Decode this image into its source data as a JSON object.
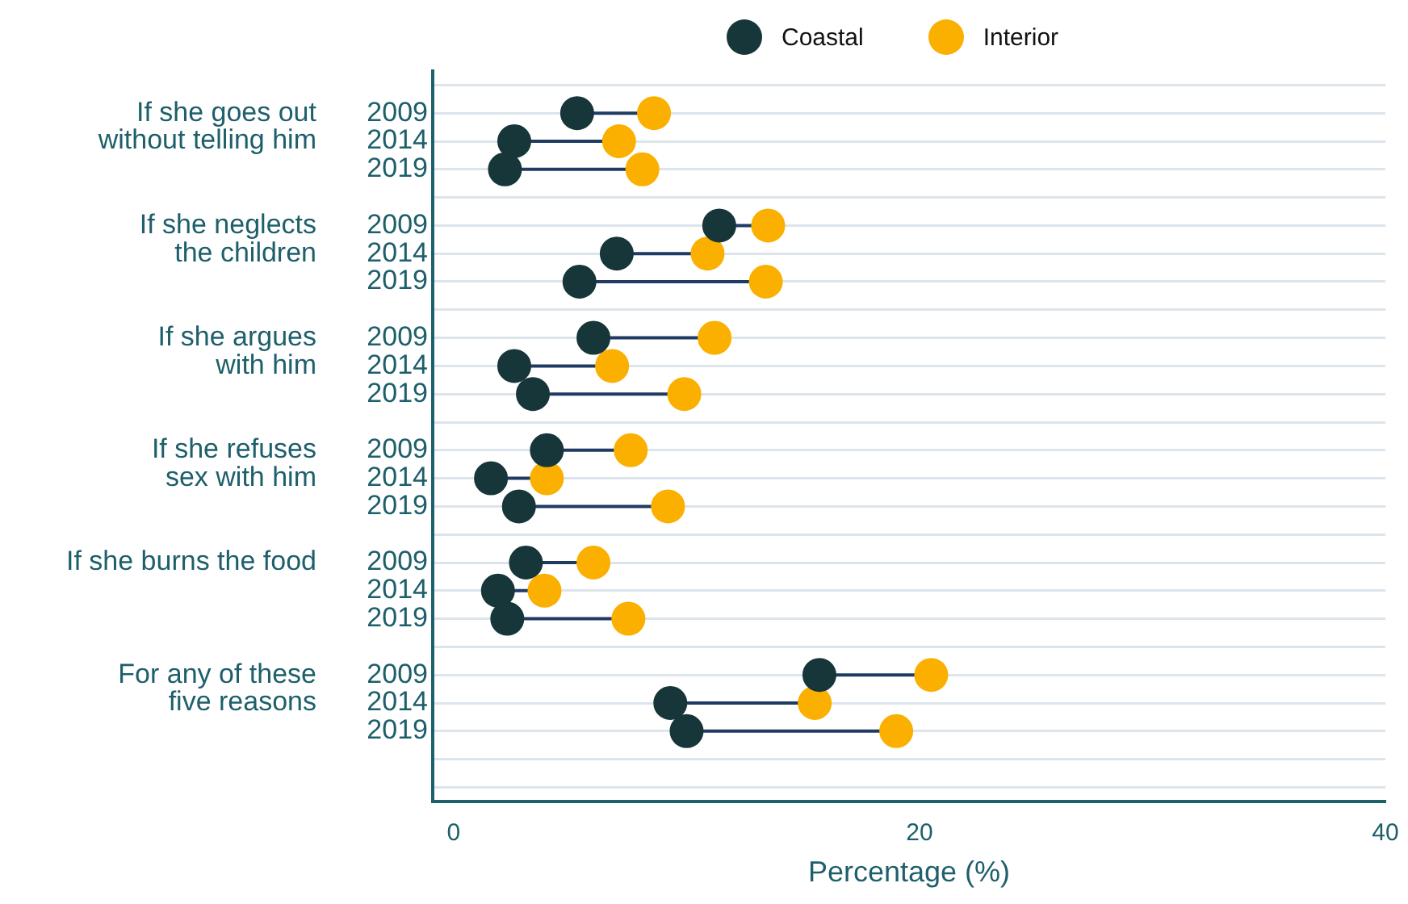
{
  "chart_data": {
    "type": "scatter",
    "orientation": "horizontal",
    "categories": [
      null,
      "2009",
      "2014",
      "2019",
      null,
      "2009",
      "2014",
      "2019",
      null,
      "2009",
      "2014",
      "2019",
      null,
      "2009",
      "2014",
      "2019",
      null,
      "2009",
      "2014",
      "2019",
      null,
      "2009",
      "2014",
      "2019",
      null,
      null
    ],
    "series": [
      {
        "name": "Coastal",
        "color": "#17363a",
        "values": [
          null,
          5.3,
          2.6,
          2.2,
          null,
          11.4,
          7.0,
          5.4,
          null,
          6.0,
          2.6,
          3.4,
          null,
          4.0,
          1.6,
          2.8,
          null,
          3.1,
          1.9,
          2.3,
          null,
          15.7,
          9.3,
          10.0,
          null,
          null
        ]
      },
      {
        "name": "Interior",
        "color": "#fbb000",
        "values": [
          null,
          8.6,
          7.1,
          8.1,
          null,
          13.5,
          10.9,
          13.4,
          null,
          11.2,
          6.8,
          9.9,
          null,
          7.6,
          4.0,
          9.2,
          null,
          6.0,
          3.9,
          7.5,
          null,
          20.5,
          15.5,
          19.0,
          null,
          null
        ]
      }
    ],
    "annotations": [
      "If she goes out\nwithout telling him",
      "If she neglects\nthe children",
      "If she argues\nwith him",
      "If she refuses\nsex with him",
      "If she burns the food",
      "For any of these\nfive reasons"
    ],
    "xlabel": "Percentage (%)",
    "xlim": [
      -0.9,
      40
    ],
    "xticks": [
      0,
      20,
      40
    ],
    "grid": "y",
    "legend": "top",
    "marker": "circle"
  }
}
